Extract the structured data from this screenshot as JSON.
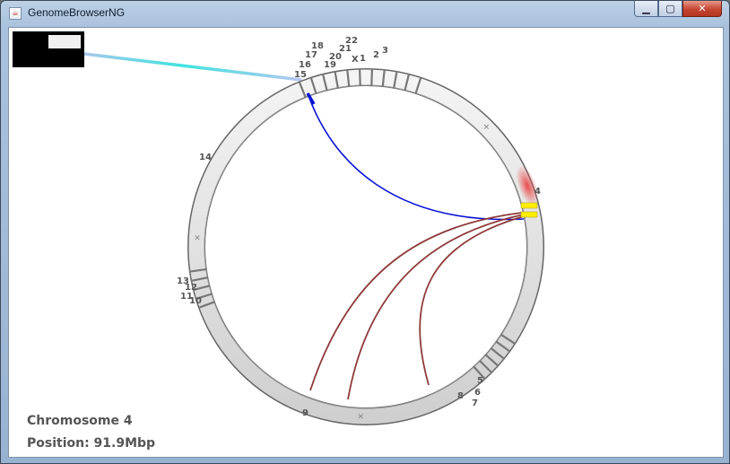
{
  "window": {
    "title": "GenomeBrowserNG",
    "controls": {
      "minimize": "▁",
      "maximize": "▢",
      "close": "✕"
    }
  },
  "genome": {
    "chromosomes": [
      "1",
      "2",
      "3",
      "4",
      "5",
      "6",
      "7",
      "8",
      "9",
      "10",
      "11",
      "12",
      "13",
      "14",
      "15",
      "16",
      "17",
      "18",
      "19",
      "20",
      "21",
      "22",
      "X"
    ],
    "selected_chromosome": "4",
    "highlight_color": "#ffee00",
    "link_colors": {
      "selected": "#0a12d6",
      "other": "#8e3a3a",
      "overview": "#3ce0e0"
    }
  },
  "info": {
    "chromosome": "Chromosome 4",
    "position": "Position: 91.9Mbp"
  }
}
